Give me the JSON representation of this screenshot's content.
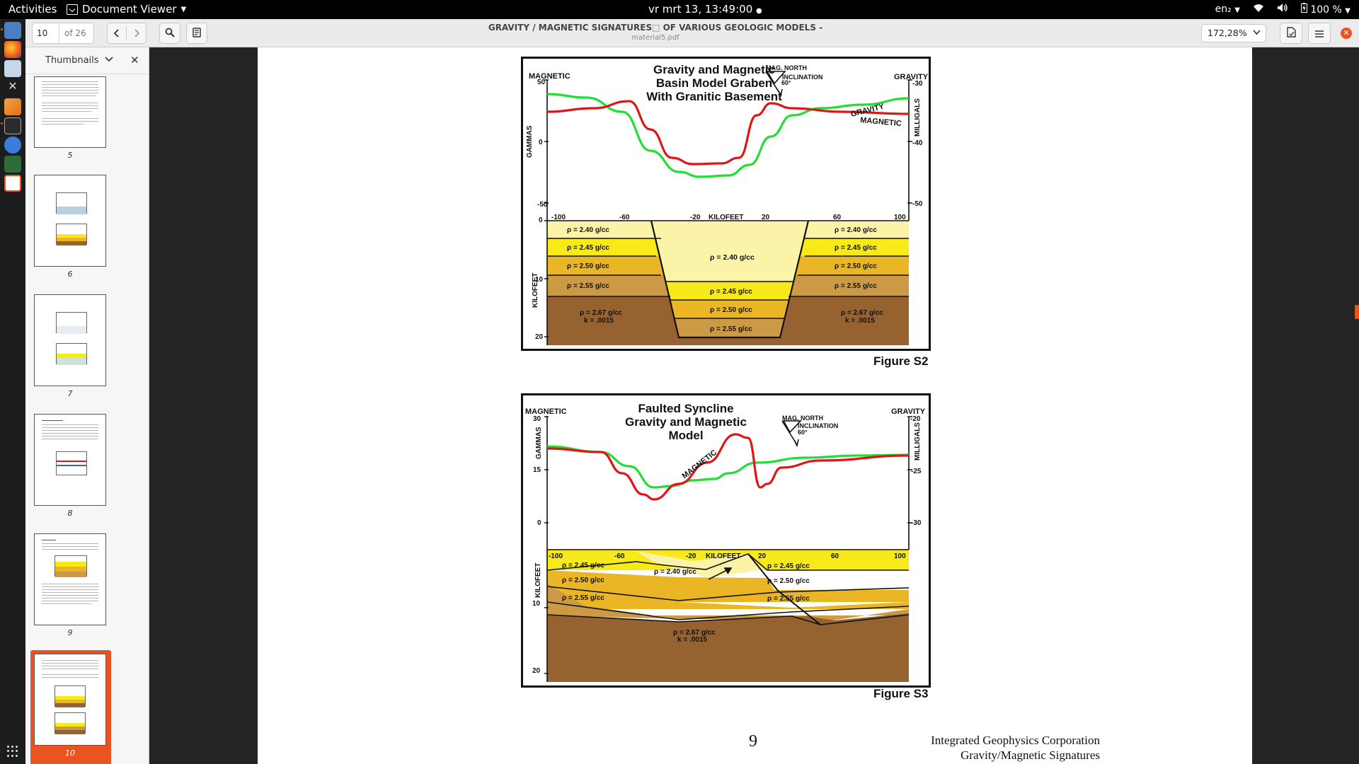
{
  "topbar": {
    "activities": "Activities",
    "app_name": "Document Viewer",
    "clock": "vr mrt 13, 13:49:00",
    "keyboard_layout": "en₂",
    "battery": "100 %"
  },
  "header": {
    "page_number": "10",
    "page_count": "of 26",
    "title": "GRAVITY / MAGNETIC SIGNATURES⬚ OF VARIOUS GEOLOGIC MODELS -",
    "filename": "material5.pdf",
    "zoom": "172,28%"
  },
  "sidebar": {
    "title": "Thumbnails",
    "pages": [
      "5",
      "6",
      "7",
      "8",
      "9",
      "10"
    ],
    "selected": "10"
  },
  "figure_s2": {
    "title_lines": [
      "Gravity and Magnetic",
      "Basin Model Graben",
      "With Granitic Basement"
    ],
    "left_axis_title": "MAGNETIC",
    "left_axis_unit": "GAMMAS",
    "right_axis_title": "GRAVITY",
    "right_axis_unit": "MILLIGALS",
    "left_ticks": [
      "50",
      "0",
      "-50"
    ],
    "right_ticks": [
      "-30",
      "-40",
      "-50"
    ],
    "mag_north": "MAG. NORTH",
    "inclination": "INCLINATION",
    "inclination_value": "60°",
    "curve_label_gravity": "GRAVITY",
    "curve_label_magnetic": "MAGNETIC",
    "x_ticks": [
      "-100",
      "-60",
      "-20",
      "KILOFEET",
      "20",
      "60",
      "100"
    ],
    "depth_axis_label": "KILOFEET",
    "depth_ticks": [
      "0",
      "10",
      "20"
    ],
    "layers_left": [
      "ρ = 2.40 g/cc",
      "ρ = 2.45 g/cc",
      "ρ = 2.50 g/cc",
      "ρ = 2.55 g/cc"
    ],
    "layers_right": [
      "ρ = 2.40 g/cc",
      "ρ = 2.45 g/cc",
      "ρ = 2.50 g/cc",
      "ρ = 2.55 g/cc"
    ],
    "layers_center": [
      "ρ = 2.40 g/cc",
      "ρ = 2.45 g/cc",
      "ρ = 2.50 g/cc",
      "ρ = 2.55 g/cc"
    ],
    "basement": [
      "ρ = 2.67 g/cc",
      "k = .0015"
    ],
    "caption": "Figure S2"
  },
  "figure_s3": {
    "title_lines": [
      "Faulted Syncline",
      "Gravity and Magnetic Model"
    ],
    "left_axis_title": "MAGNETIC",
    "left_axis_unit": "GAMMAS",
    "right_axis_title": "GRAVITY",
    "right_axis_unit": "MILLIGALS",
    "left_ticks": [
      "30",
      "15",
      "0"
    ],
    "right_ticks": [
      "-20",
      "-25",
      "-30"
    ],
    "mag_north": "MAG. NORTH",
    "inclination": "INCLINATION",
    "inclination_value": "60°",
    "curve_label_magnetic": "MAGNETIC",
    "x_ticks": [
      "-100",
      "-60",
      "-20",
      "KILOFEET",
      "20",
      "60",
      "100"
    ],
    "depth_axis_label": "KILOFEET",
    "depth_ticks": [
      "10",
      "20"
    ],
    "layers_left": [
      "ρ = 2.45 g/cc",
      "ρ = 2.50 g/cc",
      "ρ = 2.55 g/cc"
    ],
    "layers_right": [
      "ρ = 2.45 g/cc",
      "ρ = 2.50 g/cc",
      "ρ = 2.55 g/cc"
    ],
    "layer_center": "ρ = 2.40 g/cc",
    "basement": [
      "ρ = 2.67 g/cc",
      "k = .0015"
    ],
    "caption": "Figure S3"
  },
  "footer": {
    "page_number": "9",
    "company": "Integrated Geophysics Corporation",
    "subtitle": "Gravity/Magnetic Signatures"
  },
  "colors": {
    "accent": "#e95420",
    "gravity_curve": "#22dd33",
    "magnetic_curve": "#e01515",
    "layer_240": "#faf3a8",
    "layer_245": "#f7e91a",
    "layer_250": "#eab625",
    "layer_255": "#cc9a45",
    "basement": "#96622f"
  }
}
